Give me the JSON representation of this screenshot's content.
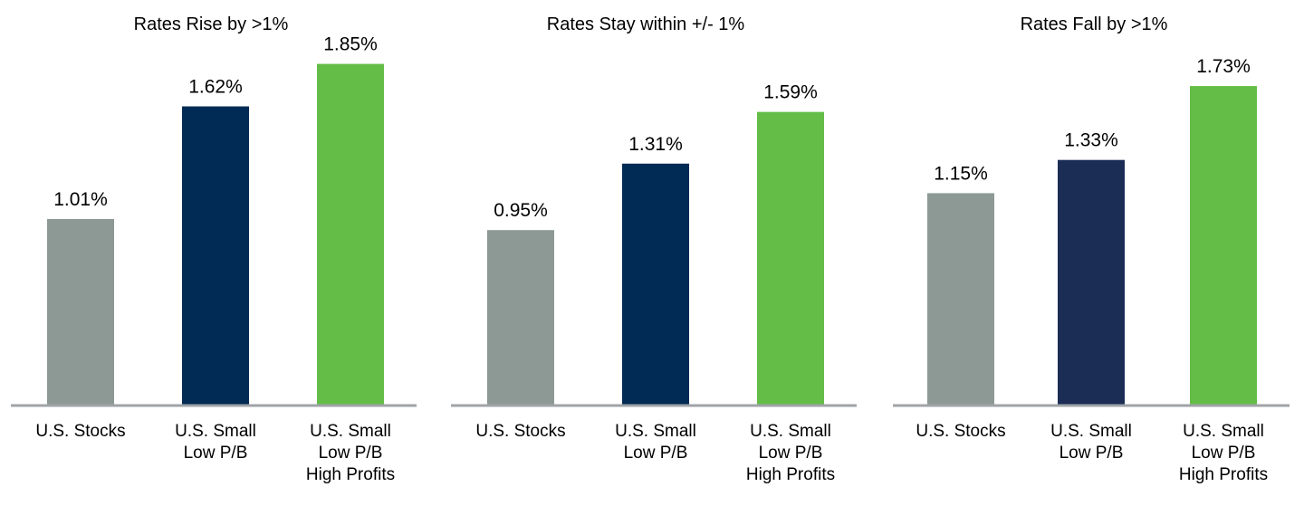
{
  "chart_data": [
    {
      "type": "bar",
      "title": "Rates Rise by >1%",
      "categories": [
        [
          "U.S. Stocks"
        ],
        [
          "U.S. Small",
          "Low P/B"
        ],
        [
          "U.S. Small",
          "Low P/B",
          "High Profits"
        ]
      ],
      "values": [
        1.01,
        1.62,
        1.85
      ],
      "data_labels": [
        "1.01%",
        "1.62%",
        "1.85%"
      ],
      "colors": [
        "#8c9994",
        "#012a54",
        "#63bd47"
      ],
      "ylim": [
        0,
        2.0
      ],
      "grid": false,
      "legend": "none"
    },
    {
      "type": "bar",
      "title": "Rates Stay within +/- 1%",
      "categories": [
        [
          "U.S. Stocks"
        ],
        [
          "U.S. Small",
          "Low P/B"
        ],
        [
          "U.S. Small",
          "Low P/B",
          "High Profits"
        ]
      ],
      "values": [
        0.95,
        1.31,
        1.59
      ],
      "data_labels": [
        "0.95%",
        "1.31%",
        "1.59%"
      ],
      "colors": [
        "#8c9994",
        "#012a54",
        "#63bd47"
      ],
      "ylim": [
        0,
        2.0
      ],
      "grid": false,
      "legend": "none"
    },
    {
      "type": "bar",
      "title": "Rates Fall by >1%",
      "categories": [
        [
          "U.S. Stocks"
        ],
        [
          "U.S. Small",
          "Low P/B"
        ],
        [
          "U.S. Small",
          "Low P/B",
          "High Profits"
        ]
      ],
      "values": [
        1.15,
        1.33,
        1.73
      ],
      "data_labels": [
        "1.15%",
        "1.33%",
        "1.73%"
      ],
      "colors": [
        "#8c9994",
        "#1b2d55",
        "#63bd47"
      ],
      "ylim": [
        0,
        2.0
      ],
      "grid": false,
      "legend": "none"
    }
  ],
  "axis_color": "#a0a4a8"
}
